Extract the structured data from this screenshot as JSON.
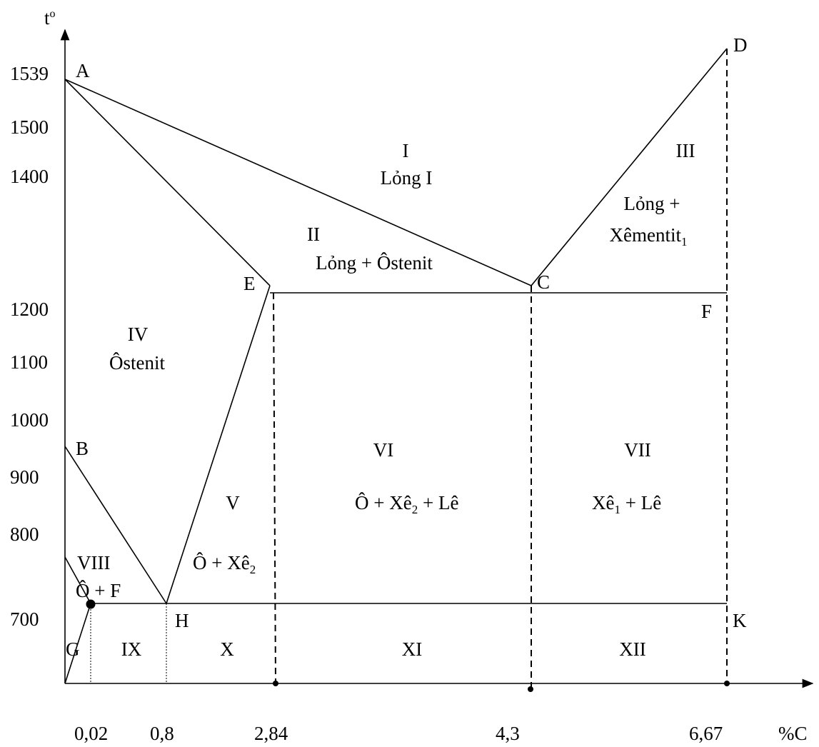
{
  "axes": {
    "y_label": "t",
    "y_label_sup": "o",
    "x_label": "%C",
    "y_ticks": [
      "1539",
      "1500",
      "1400",
      "1200",
      "1100",
      "1000",
      "900",
      "800",
      "700"
    ],
    "x_ticks": [
      "0,02",
      "0,8",
      "2,84",
      "4,3",
      "6,67"
    ]
  },
  "points": {
    "A": "A",
    "B": "B",
    "C": "C",
    "D": "D",
    "E": "E",
    "F": "F",
    "G": "G",
    "H": "H",
    "K": "K"
  },
  "regions": {
    "I": {
      "num": "I",
      "name": "Lỏng I"
    },
    "II": {
      "num": "II",
      "name": "Lỏng + Ôstenit"
    },
    "III": {
      "num": "III",
      "name_line1": "Lỏng +",
      "name_line2": "Xêmentit",
      "name_line2_sub": "1"
    },
    "IV": {
      "num": "IV",
      "name": "Ôstenit"
    },
    "V": {
      "num": "V",
      "name": "Ô + Xê",
      "name_sub": "2"
    },
    "VI": {
      "num": "VI",
      "name_a": "Ô + Xê",
      "name_sub": "2",
      "name_b": " + Lê"
    },
    "VII": {
      "num": "VII",
      "name_a": "Xê",
      "name_sub": "1",
      "name_b": " + Lê"
    },
    "VIII": {
      "num": "VIII",
      "name": "Ô + F"
    },
    "IX": {
      "num": "IX"
    },
    "X": {
      "num": "X"
    },
    "XI": {
      "num": "XI"
    },
    "XII": {
      "num": "XII"
    }
  }
}
